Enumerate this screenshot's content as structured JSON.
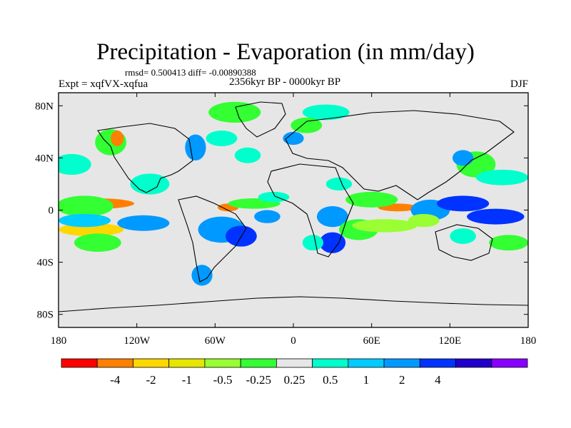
{
  "chart_data": {
    "type": "heatmap",
    "title": "Precipitation - Evaporation (in mm/day)",
    "stats_text": "rmsd= 0.500413 diff= -0.00890388",
    "experiment": "Expt = xqfVX-xqfua",
    "period": "2356kyr BP - 0000kyr BP",
    "season": "DJF",
    "x_ticks": [
      {
        "value": -180,
        "label": "180"
      },
      {
        "value": -120,
        "label": "120W"
      },
      {
        "value": -60,
        "label": "60W"
      },
      {
        "value": 0,
        "label": "0"
      },
      {
        "value": 60,
        "label": "60E"
      },
      {
        "value": 120,
        "label": "120E"
      },
      {
        "value": 180,
        "label": "180"
      }
    ],
    "y_ticks": [
      {
        "value": 80,
        "label": "80N"
      },
      {
        "value": 40,
        "label": "40N"
      },
      {
        "value": 0,
        "label": "0"
      },
      {
        "value": -40,
        "label": "40S"
      },
      {
        "value": -80,
        "label": "80S"
      }
    ],
    "xlim": [
      -180,
      180
    ],
    "ylim": [
      -90,
      90
    ],
    "colorbar": {
      "colors": [
        "#ff0000",
        "#ff8000",
        "#ffd700",
        "#e6e600",
        "#99ff33",
        "#33ff33",
        "#e6e6e6",
        "#00ffcc",
        "#00ccff",
        "#0099ff",
        "#0033ff",
        "#2200cc",
        "#8800ff"
      ],
      "labels": [
        "-4",
        "-2",
        "-1",
        "-0.5",
        "-0.25",
        "0.25",
        "0.5",
        "1",
        "2",
        "4"
      ]
    },
    "anomaly_regions": [
      {
        "lon": -150,
        "lat": 5,
        "rx": 28,
        "ry": 4,
        "color": "#ff8000"
      },
      {
        "lon": -160,
        "lat": 3,
        "rx": 22,
        "ry": 8,
        "color": "#33ff33"
      },
      {
        "lon": -155,
        "lat": -15,
        "rx": 25,
        "ry": 5,
        "color": "#ffd700"
      },
      {
        "lon": -160,
        "lat": -8,
        "rx": 20,
        "ry": 5,
        "color": "#00ccff"
      },
      {
        "lon": -150,
        "lat": -25,
        "rx": 18,
        "ry": 7,
        "color": "#33ff33"
      },
      {
        "lon": -140,
        "lat": 52,
        "rx": 12,
        "ry": 10,
        "color": "#33ff33"
      },
      {
        "lon": -135,
        "lat": 55,
        "rx": 5,
        "ry": 6,
        "color": "#ff8000"
      },
      {
        "lon": -170,
        "lat": 35,
        "rx": 15,
        "ry": 8,
        "color": "#00ffcc"
      },
      {
        "lon": -115,
        "lat": -10,
        "rx": 20,
        "ry": 6,
        "color": "#0099ff"
      },
      {
        "lon": -110,
        "lat": 20,
        "rx": 15,
        "ry": 8,
        "color": "#00ffcc"
      },
      {
        "lon": -75,
        "lat": 48,
        "rx": 8,
        "ry": 10,
        "color": "#0099ff"
      },
      {
        "lon": -55,
        "lat": 55,
        "rx": 12,
        "ry": 6,
        "color": "#00ffcc"
      },
      {
        "lon": -45,
        "lat": 75,
        "rx": 20,
        "ry": 8,
        "color": "#33ff33"
      },
      {
        "lon": -35,
        "lat": 42,
        "rx": 10,
        "ry": 6,
        "color": "#00ffcc"
      },
      {
        "lon": -55,
        "lat": -15,
        "rx": 18,
        "ry": 10,
        "color": "#0099ff"
      },
      {
        "lon": -40,
        "lat": -20,
        "rx": 12,
        "ry": 8,
        "color": "#0033ff"
      },
      {
        "lon": -50,
        "lat": 2,
        "rx": 8,
        "ry": 3,
        "color": "#ff8000"
      },
      {
        "lon": -30,
        "lat": 5,
        "rx": 20,
        "ry": 4,
        "color": "#33ff33"
      },
      {
        "lon": -20,
        "lat": -5,
        "rx": 10,
        "ry": 5,
        "color": "#0099ff"
      },
      {
        "lon": -70,
        "lat": -50,
        "rx": 8,
        "ry": 8,
        "color": "#0099ff"
      },
      {
        "lon": -15,
        "lat": 10,
        "rx": 12,
        "ry": 4,
        "color": "#00ffcc"
      },
      {
        "lon": 25,
        "lat": 75,
        "rx": 18,
        "ry": 6,
        "color": "#00ffcc"
      },
      {
        "lon": 10,
        "lat": 65,
        "rx": 12,
        "ry": 6,
        "color": "#33ff33"
      },
      {
        "lon": 0,
        "lat": 55,
        "rx": 8,
        "ry": 5,
        "color": "#0099ff"
      },
      {
        "lon": 35,
        "lat": 20,
        "rx": 10,
        "ry": 5,
        "color": "#00ffcc"
      },
      {
        "lon": 30,
        "lat": -5,
        "rx": 12,
        "ry": 8,
        "color": "#0099ff"
      },
      {
        "lon": 30,
        "lat": -25,
        "rx": 10,
        "ry": 8,
        "color": "#0033ff"
      },
      {
        "lon": 15,
        "lat": -25,
        "rx": 8,
        "ry": 6,
        "color": "#00ffcc"
      },
      {
        "lon": 50,
        "lat": -15,
        "rx": 15,
        "ry": 8,
        "color": "#33ff33"
      },
      {
        "lon": 70,
        "lat": -12,
        "rx": 25,
        "ry": 5,
        "color": "#99ff33"
      },
      {
        "lon": 80,
        "lat": 2,
        "rx": 15,
        "ry": 3,
        "color": "#ff8000"
      },
      {
        "lon": 60,
        "lat": 8,
        "rx": 20,
        "ry": 6,
        "color": "#33ff33"
      },
      {
        "lon": 105,
        "lat": 0,
        "rx": 15,
        "ry": 8,
        "color": "#0099ff"
      },
      {
        "lon": 130,
        "lat": 5,
        "rx": 20,
        "ry": 6,
        "color": "#0033ff"
      },
      {
        "lon": 155,
        "lat": -5,
        "rx": 22,
        "ry": 6,
        "color": "#0033ff"
      },
      {
        "lon": 140,
        "lat": 35,
        "rx": 15,
        "ry": 10,
        "color": "#33ff33"
      },
      {
        "lon": 130,
        "lat": 40,
        "rx": 8,
        "ry": 6,
        "color": "#0099ff"
      },
      {
        "lon": 160,
        "lat": 25,
        "rx": 20,
        "ry": 6,
        "color": "#00ffcc"
      },
      {
        "lon": 165,
        "lat": -25,
        "rx": 15,
        "ry": 6,
        "color": "#33ff33"
      },
      {
        "lon": 130,
        "lat": -20,
        "rx": 10,
        "ry": 6,
        "color": "#00ffcc"
      },
      {
        "lon": 100,
        "lat": -8,
        "rx": 12,
        "ry": 5,
        "color": "#99ff33"
      }
    ]
  }
}
